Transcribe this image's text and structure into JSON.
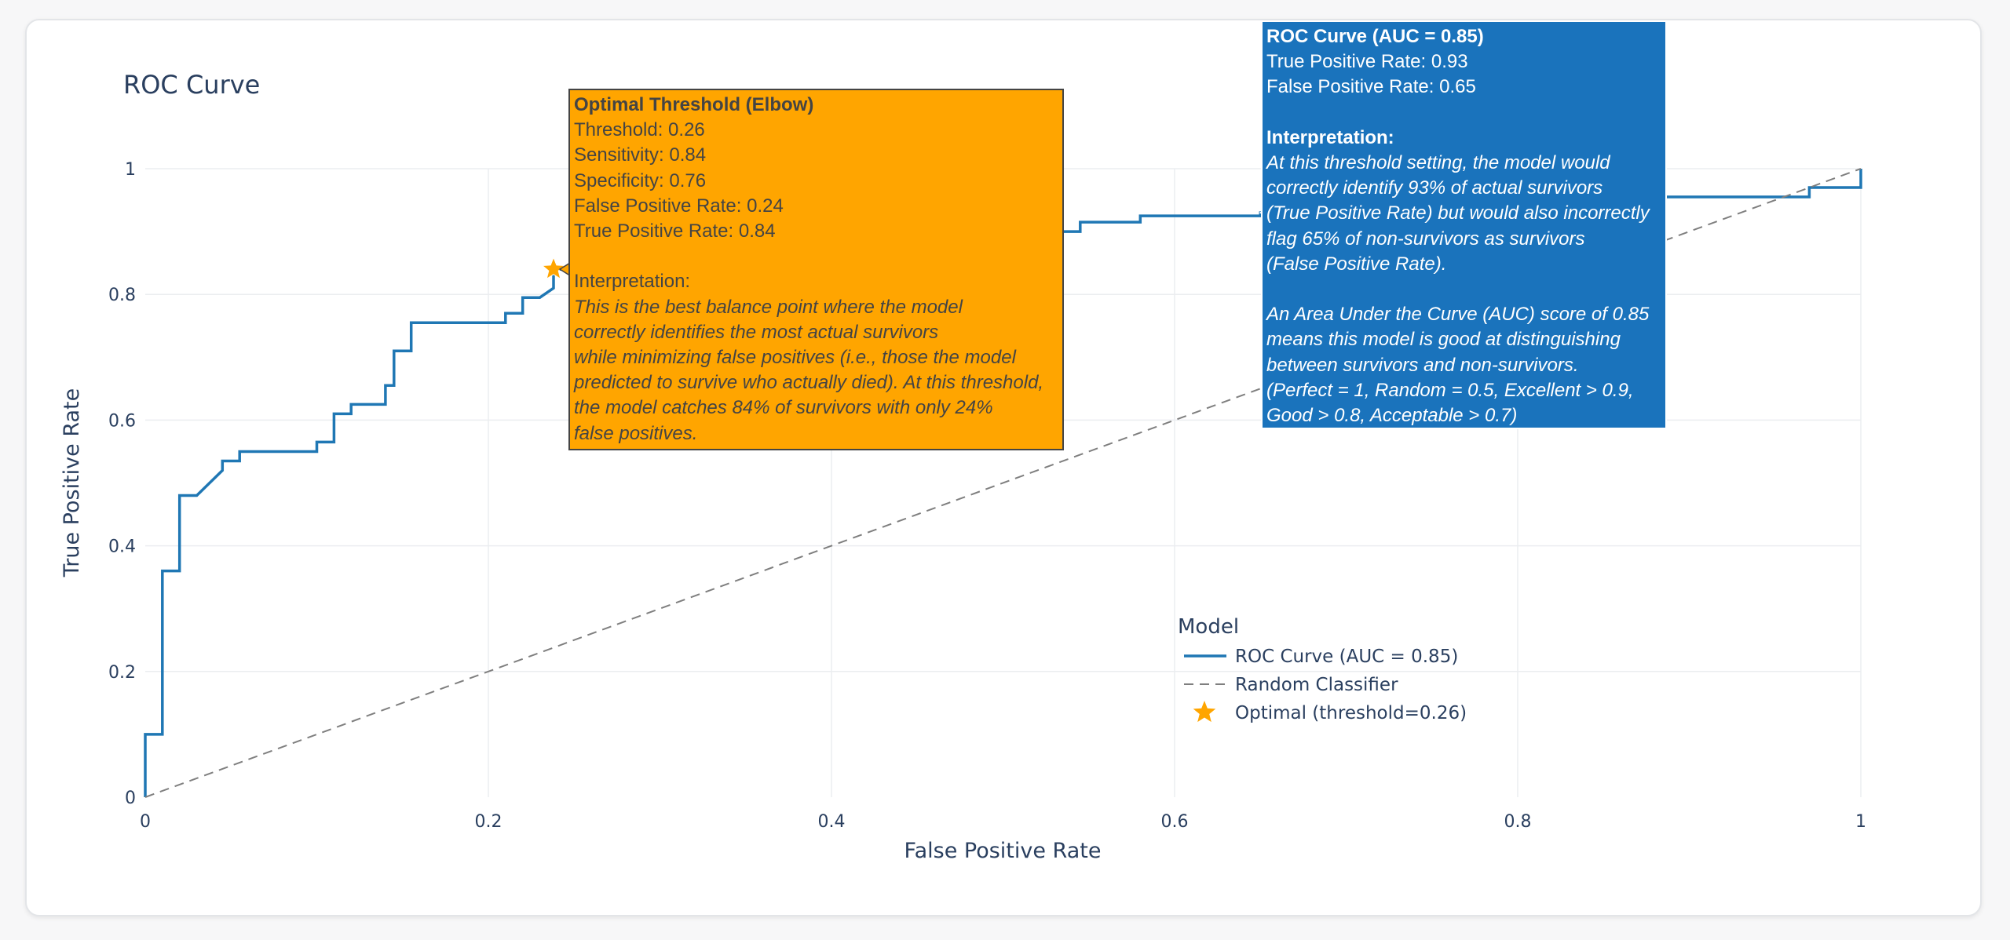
{
  "chart_data": {
    "type": "line",
    "title": "ROC Curve",
    "xlabel": "False Positive Rate",
    "ylabel": "True Positive Rate",
    "xlim": [
      0,
      1
    ],
    "ylim": [
      0,
      1
    ],
    "x_ticks": [
      "0",
      "0.2",
      "0.4",
      "0.6",
      "0.8",
      "1"
    ],
    "y_ticks": [
      "0",
      "0.2",
      "0.4",
      "0.6",
      "0.8",
      "1"
    ],
    "grid": true,
    "legend_title": "Model",
    "legend_position": "lower-middle-right",
    "series": [
      {
        "name": "ROC Curve (AUC = 0.85)",
        "style": "solid",
        "color": "#1F77B4",
        "points": [
          [
            0,
            0
          ],
          [
            0,
            0.1
          ],
          [
            0.01,
            0.1
          ],
          [
            0.01,
            0.36
          ],
          [
            0.02,
            0.36
          ],
          [
            0.02,
            0.48
          ],
          [
            0.03,
            0.48
          ],
          [
            0.045,
            0.52
          ],
          [
            0.045,
            0.535
          ],
          [
            0.055,
            0.535
          ],
          [
            0.055,
            0.55
          ],
          [
            0.1,
            0.55
          ],
          [
            0.1,
            0.565
          ],
          [
            0.11,
            0.565
          ],
          [
            0.11,
            0.61
          ],
          [
            0.12,
            0.61
          ],
          [
            0.12,
            0.625
          ],
          [
            0.14,
            0.625
          ],
          [
            0.14,
            0.655
          ],
          [
            0.145,
            0.655
          ],
          [
            0.145,
            0.71
          ],
          [
            0.155,
            0.71
          ],
          [
            0.155,
            0.755
          ],
          [
            0.21,
            0.755
          ],
          [
            0.21,
            0.77
          ],
          [
            0.22,
            0.77
          ],
          [
            0.22,
            0.795
          ],
          [
            0.23,
            0.795
          ],
          [
            0.238,
            0.81
          ],
          [
            0.238,
            0.84
          ],
          [
            0.26,
            0.84
          ],
          [
            0.32,
            0.87
          ],
          [
            0.42,
            0.885
          ],
          [
            0.53,
            0.895
          ],
          [
            0.53,
            0.9
          ],
          [
            0.545,
            0.9
          ],
          [
            0.545,
            0.915
          ],
          [
            0.58,
            0.915
          ],
          [
            0.58,
            0.925
          ],
          [
            0.65,
            0.925
          ],
          [
            0.65,
            0.93
          ],
          [
            0.72,
            0.935
          ],
          [
            0.8,
            0.945
          ],
          [
            0.87,
            0.955
          ],
          [
            0.97,
            0.955
          ],
          [
            0.97,
            0.97
          ],
          [
            1,
            0.97
          ],
          [
            1,
            1
          ]
        ]
      },
      {
        "name": "Random Classifier",
        "style": "dashed",
        "color": "#7F7F7F",
        "points": [
          [
            0,
            0
          ],
          [
            1,
            1
          ]
        ]
      },
      {
        "name": "Optimal (threshold=0.26)",
        "style": "marker-star",
        "color": "#FFA500",
        "points": [
          [
            0.238,
            0.84
          ]
        ]
      }
    ]
  },
  "tooltips": {
    "optimal": {
      "title": "Optimal Threshold (Elbow)",
      "lines": [
        "Threshold: 0.26",
        "Sensitivity: 0.84",
        "Specificity: 0.76",
        "False Positive Rate: 0.24",
        "True Positive Rate: 0.84"
      ],
      "interp_label": "Interpretation:",
      "interp_lines": [
        "This is the best balance point where the model",
        "correctly identifies the most actual survivors",
        "while minimizing false positives (i.e., those the model",
        "predicted to survive who actually died). At this threshold,",
        "the model catches 84% of survivors with only 24%",
        "false positives."
      ]
    },
    "roc": {
      "title": "ROC Curve (AUC = 0.85)",
      "lines": [
        "True Positive Rate: 0.93",
        "False Positive Rate: 0.65"
      ],
      "interp_label": "Interpretation:",
      "interp_lines": [
        "At this threshold setting, the model would",
        "correctly identify 93% of actual survivors",
        "(True Positive Rate) but would also incorrectly",
        "flag 65% of non-survivors as survivors",
        "(False Positive Rate)."
      ],
      "auc_lines": [
        "An Area Under the Curve (AUC) score of 0.85",
        "means this model is good at distinguishing",
        "between survivors and non-survivors.",
        "(Perfect = 1, Random = 0.5, Excellent > 0.9,",
        "Good > 0.8, Acceptable > 0.7)"
      ]
    }
  }
}
